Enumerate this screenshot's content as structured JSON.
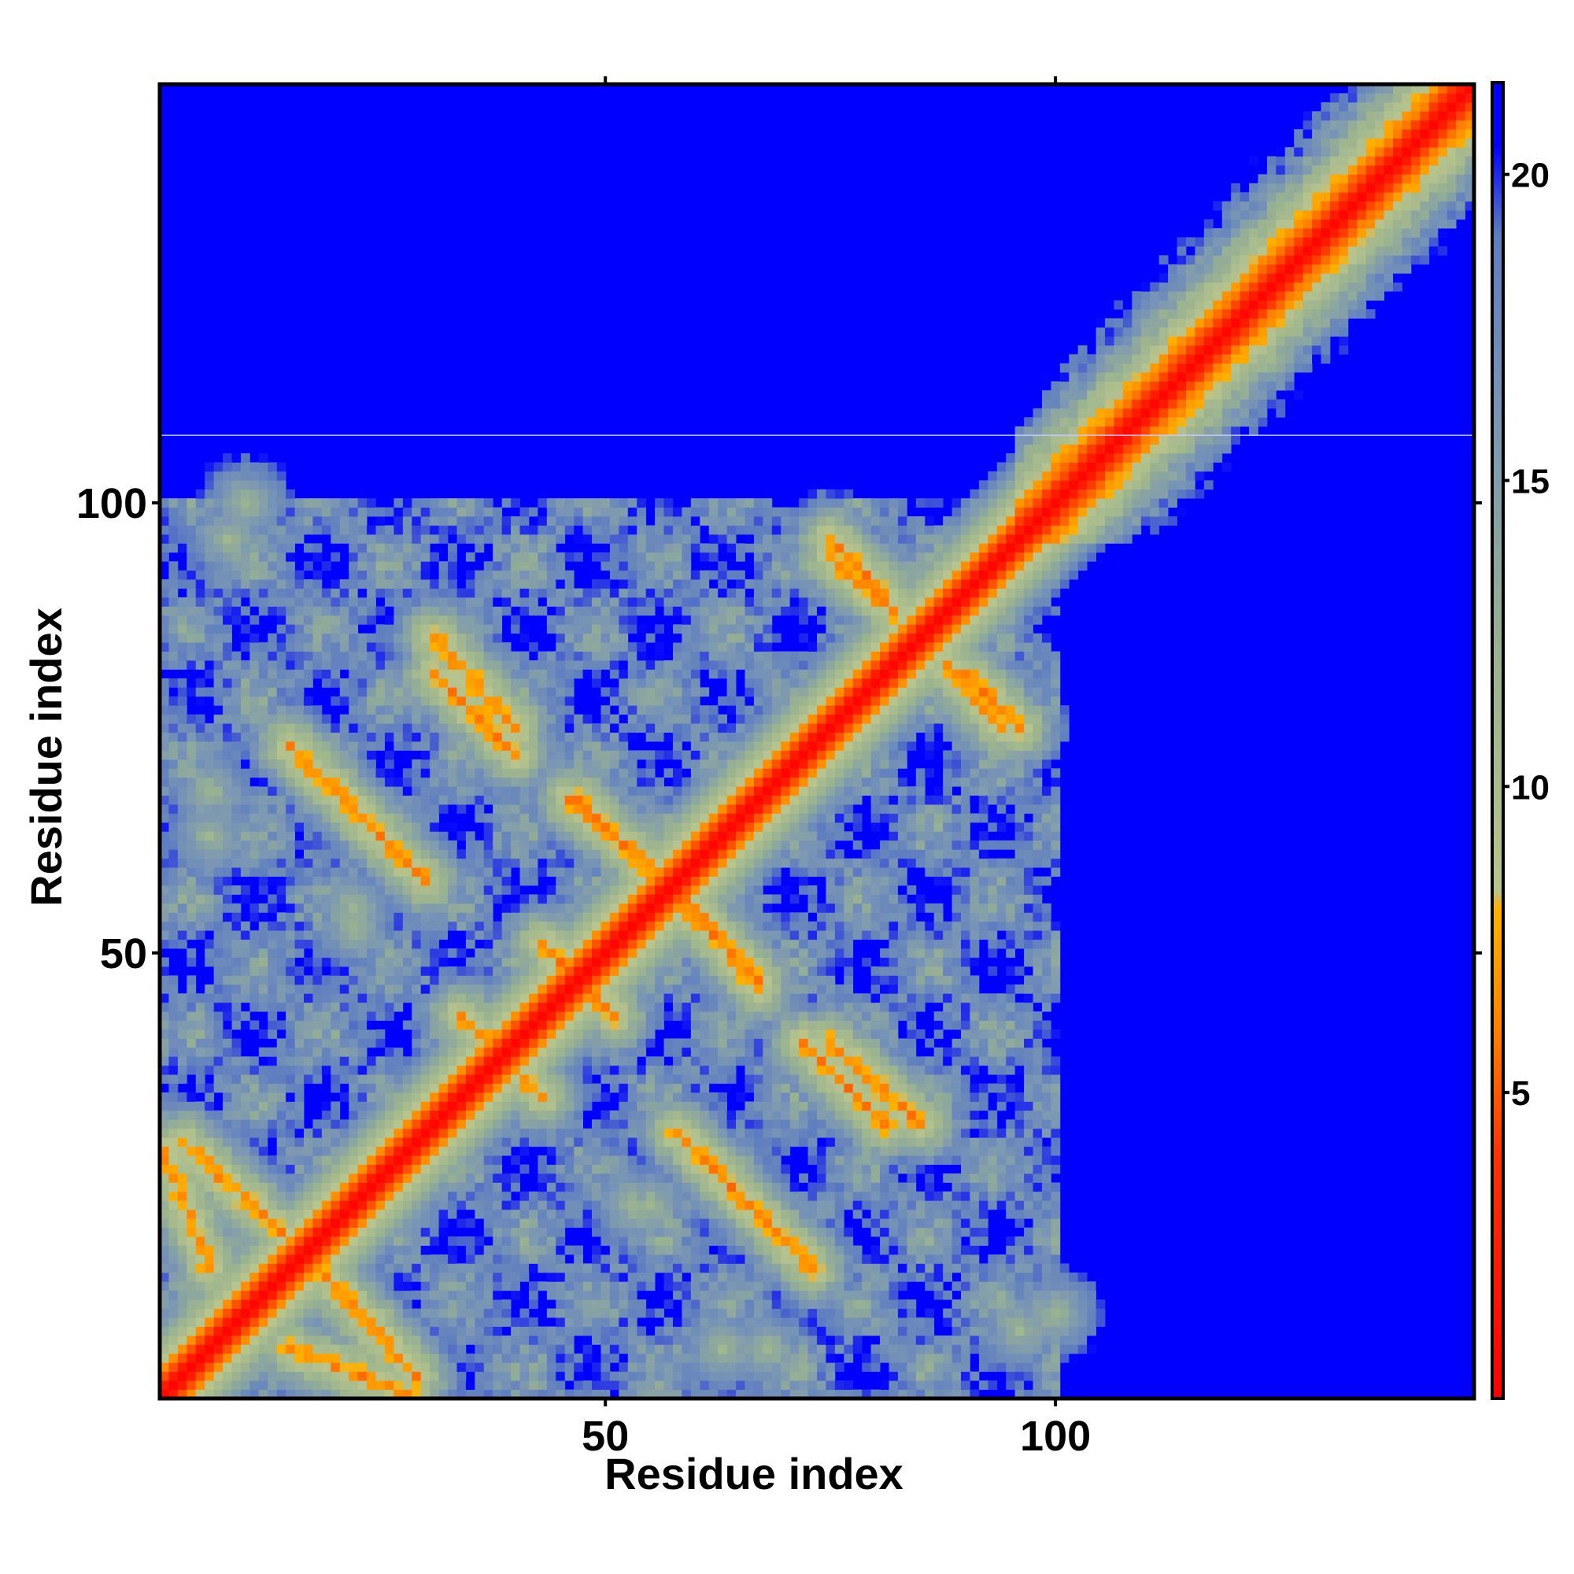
{
  "chart_data": {
    "type": "heatmap",
    "title": "",
    "xlabel": "Residue index",
    "ylabel": "Residue index",
    "residue_count": 146,
    "x_range": [
      1,
      146
    ],
    "y_range": [
      1,
      146
    ],
    "x_ticks": [
      50,
      100
    ],
    "y_ticks": [
      50,
      100
    ],
    "x_tick_labels": [
      "50",
      "100"
    ],
    "y_tick_labels": [
      "50",
      "100"
    ],
    "colorbar": {
      "range": [
        0,
        21.5
      ],
      "ticks": [
        5,
        10,
        15,
        20
      ],
      "tick_labels": [
        "5",
        "10",
        "15",
        "20"
      ],
      "stops": [
        {
          "value": 0,
          "color": "#ff0000"
        },
        {
          "value": 4,
          "color": "#ff3300"
        },
        {
          "value": 6,
          "color": "#ff8000"
        },
        {
          "value": 8,
          "color": "#ffb000"
        },
        {
          "value": 8.3,
          "color": "#b8c48c"
        },
        {
          "value": 12,
          "color": "#9bb38f"
        },
        {
          "value": 16,
          "color": "#7a96b4"
        },
        {
          "value": 19,
          "color": "#5f7ec0"
        },
        {
          "value": 20.5,
          "color": "#0000ff"
        }
      ]
    },
    "background_color": "#0000ff",
    "cut_row": 107,
    "note_structure": "distance map between residues (Å); main diagonal near 0, sheet contacts at approx. 5-8",
    "contact_strands": [
      {
        "from": [
          3,
          29
        ],
        "to": [
          14,
          19
        ]
      },
      {
        "from": [
          15,
          6
        ],
        "to": [
          28,
          1
        ]
      },
      {
        "from": [
          15,
          73
        ],
        "to": [
          30,
          58
        ]
      },
      {
        "from": [
          31,
          81
        ],
        "to": [
          40,
          72
        ]
      },
      {
        "from": [
          46,
          67
        ],
        "to": [
          56,
          59
        ]
      },
      {
        "from": [
          37,
          40
        ],
        "to": [
          43,
          34
        ]
      },
      {
        "from": [
          47,
          47
        ],
        "to": [
          51,
          43
        ]
      },
      {
        "from": [
          57,
          57
        ],
        "to": [
          67,
          47
        ]
      },
      {
        "from": [
          60,
          28
        ],
        "to": [
          72,
          16
        ]
      },
      {
        "from": [
          75,
          40
        ],
        "to": [
          85,
          31
        ]
      },
      {
        "from": [
          75,
          94
        ],
        "to": [
          82,
          88
        ]
      },
      {
        "from": [
          90,
          81
        ],
        "to": [
          96,
          75
        ]
      }
    ],
    "contact_patches": [
      {
        "center": [
          10,
          100
        ],
        "size": 3
      },
      {
        "center": [
          6,
          68
        ],
        "size": 4
      },
      {
        "center": [
          22,
          55
        ],
        "size": 4
      },
      {
        "center": [
          53,
          22
        ],
        "size": 4
      },
      {
        "center": [
          63,
          6
        ],
        "size": 4
      },
      {
        "center": [
          96,
          8
        ],
        "size": 4
      }
    ],
    "block_region": [
      1,
      100
    ]
  }
}
